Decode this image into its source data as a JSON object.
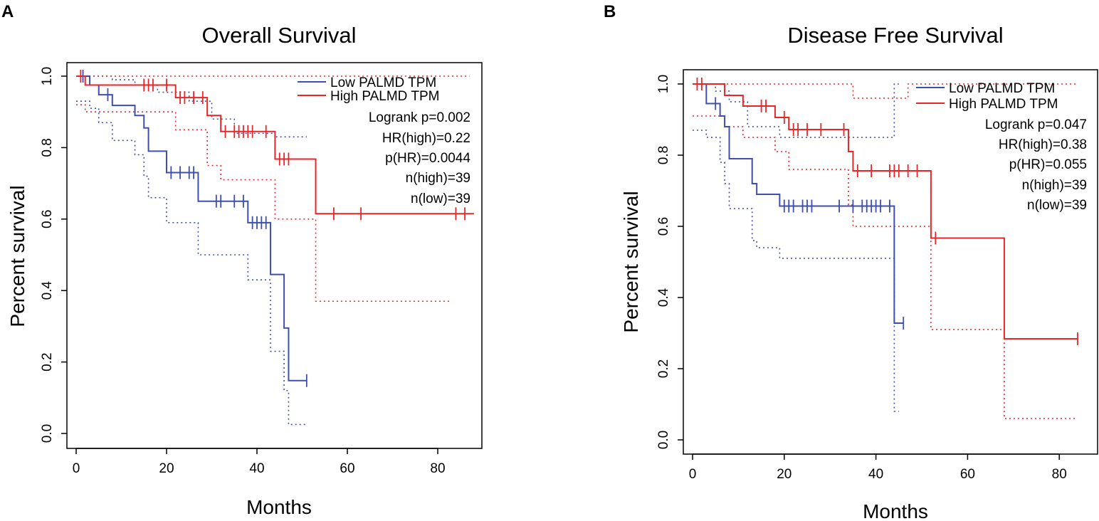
{
  "colors": {
    "low": "#3d4fb0",
    "high": "#e8262a",
    "axis": "#000000"
  },
  "chart_data": [
    {
      "type": "line",
      "panel": "A",
      "title": "Overall Survival",
      "xlabel": "Months",
      "ylabel": "Percent survival",
      "xlim": [
        0,
        88
      ],
      "ylim": [
        0,
        1.0
      ],
      "xticks": [
        "0",
        "20",
        "40",
        "60",
        "80"
      ],
      "yticks": [
        "0.0",
        "0.2",
        "0.4",
        "0.6",
        "0.8",
        "1.0"
      ],
      "legend": [
        "Low PALMD TPM",
        "High PALMD TPM"
      ],
      "stats": [
        "Logrank p=0.002",
        "HR(high)=0.22",
        "p(HR)=0.0044",
        "n(high)=39",
        "n(low)=39"
      ],
      "series": [
        {
          "name": "Low PALMD TPM",
          "color_key": "low",
          "x": [
            0,
            3,
            5,
            8,
            13,
            15,
            16,
            20,
            27,
            38,
            43,
            46,
            47,
            51
          ],
          "y": [
            1.0,
            0.975,
            0.948,
            0.918,
            0.89,
            0.855,
            0.79,
            0.73,
            0.65,
            0.59,
            0.445,
            0.295,
            0.148,
            0.148
          ],
          "censor_x": [
            1.5,
            7,
            21,
            23,
            25,
            26,
            31,
            32,
            35,
            37,
            39,
            40,
            41,
            42,
            51
          ],
          "ci_upper": {
            "x": [
              0,
              3,
              8,
              13,
              18,
              25,
              30,
              35,
              44,
              51
            ],
            "y": [
              1.0,
              1.0,
              0.99,
              0.975,
              0.955,
              0.93,
              0.88,
              0.84,
              0.83,
              0.83
            ]
          },
          "ci_lower": {
            "x": [
              0,
              3,
              5,
              8,
              13,
              15,
              16,
              20,
              27,
              38,
              43,
              46,
              47,
              51
            ],
            "y": [
              0.93,
              0.91,
              0.87,
              0.82,
              0.78,
              0.72,
              0.66,
              0.59,
              0.5,
              0.43,
              0.23,
              0.12,
              0.025,
              0.025
            ]
          }
        },
        {
          "name": "High PALMD TPM",
          "color_key": "high",
          "x": [
            0,
            2,
            22,
            29,
            32,
            44,
            53,
            88
          ],
          "y": [
            1.0,
            0.975,
            0.94,
            0.89,
            0.845,
            0.768,
            0.615,
            0.615
          ],
          "censor_x": [
            1,
            15,
            16,
            17,
            20,
            23,
            24,
            26,
            28,
            33,
            35,
            36,
            37,
            38,
            39,
            42,
            45,
            46,
            47,
            57,
            63,
            84,
            86
          ],
          "ci_upper": {
            "x": [
              0,
              87
            ],
            "y": [
              1.0,
              1.0
            ]
          },
          "ci_lower": {
            "x": [
              0,
              2,
              22,
              29,
              32,
              44,
              53,
              83
            ],
            "y": [
              0.92,
              0.9,
              0.85,
              0.75,
              0.71,
              0.6,
              0.37,
              0.37
            ]
          }
        }
      ]
    },
    {
      "type": "line",
      "panel": "B",
      "title": "Disease Free Survival",
      "xlabel": "Months",
      "ylabel": "Percent survival",
      "xlim": [
        0,
        85
      ],
      "ylim": [
        0,
        1.0
      ],
      "xticks": [
        "0",
        "20",
        "40",
        "60",
        "80"
      ],
      "yticks": [
        "0.0",
        "0.2",
        "0.4",
        "0.6",
        "0.8",
        "1.0"
      ],
      "legend": [
        "Low PALMD TPM",
        "High PALMD TPM"
      ],
      "stats": [
        "Logrank p=0.047",
        "HR(high)=0.38",
        "p(HR)=0.055",
        "n(high)=39",
        "n(low)=39"
      ],
      "series": [
        {
          "name": "Low PALMD TPM",
          "color_key": "low",
          "x": [
            0,
            3,
            6,
            7,
            8,
            13,
            14,
            19,
            44,
            46
          ],
          "y": [
            1.0,
            0.945,
            0.91,
            0.88,
            0.79,
            0.72,
            0.69,
            0.657,
            0.328,
            0.328
          ],
          "censor_x": [
            5,
            20,
            21,
            22,
            24,
            25,
            26,
            32,
            35,
            37,
            38,
            39,
            40,
            41,
            43,
            46
          ],
          "ci_upper": {
            "x": [
              0,
              5,
              8,
              12,
              19,
              44,
              45
            ],
            "y": [
              1.0,
              0.98,
              0.95,
              0.88,
              0.85,
              1.0,
              1.0
            ]
          },
          "ci_lower": {
            "x": [
              0,
              3,
              6,
              7,
              8,
              13,
              14,
              19,
              44,
              45
            ],
            "y": [
              0.87,
              0.85,
              0.78,
              0.72,
              0.65,
              0.56,
              0.54,
              0.51,
              0.08,
              0.08
            ]
          }
        },
        {
          "name": "High PALMD TPM",
          "color_key": "high",
          "x": [
            0,
            7,
            11,
            18,
            21,
            34,
            35,
            52,
            68,
            84
          ],
          "y": [
            1.0,
            0.968,
            0.938,
            0.906,
            0.872,
            0.81,
            0.756,
            0.567,
            0.284,
            0.284
          ],
          "censor_x": [
            1,
            2,
            15,
            16,
            20,
            22,
            23,
            25,
            28,
            33,
            36,
            39,
            43,
            44,
            45,
            47,
            49,
            53,
            84
          ],
          "ci_upper": {
            "x": [
              0,
              35,
              47,
              84
            ],
            "y": [
              1.0,
              0.96,
              1.0,
              1.0
            ]
          },
          "ci_lower": {
            "x": [
              0,
              7,
              11,
              18,
              21,
              34,
              35,
              52,
              68,
              84
            ],
            "y": [
              0.91,
              0.88,
              0.85,
              0.81,
              0.76,
              0.66,
              0.6,
              0.31,
              0.06,
              0.06
            ]
          }
        }
      ]
    }
  ]
}
